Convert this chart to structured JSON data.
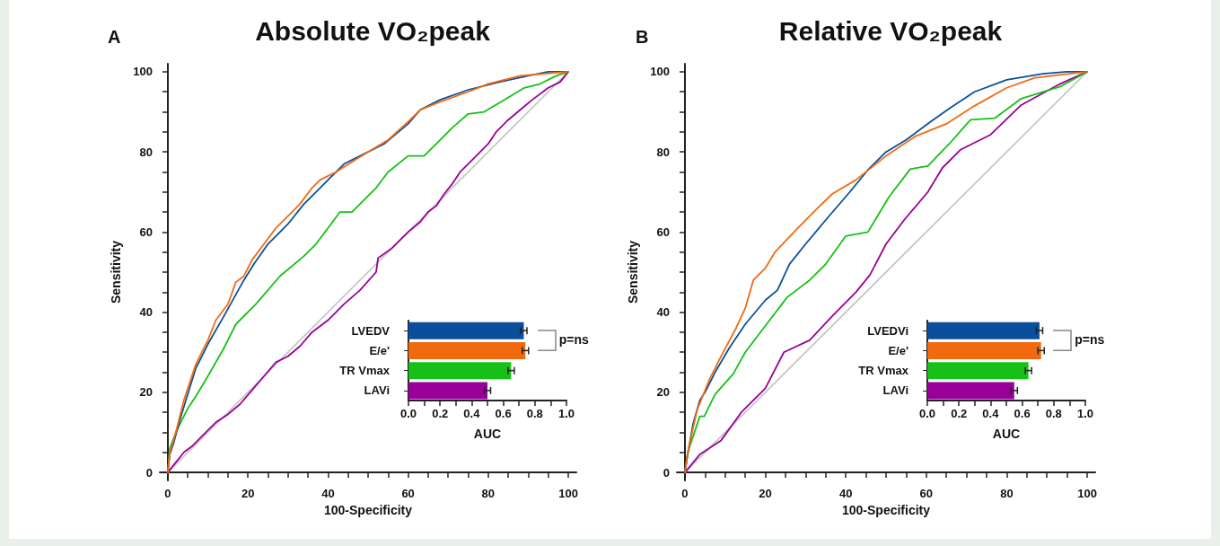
{
  "chart_data": [
    {
      "type": "line",
      "title": "Absolute VO₂peak",
      "annotations": [
        "A"
      ],
      "xlabel": "100-Specificity",
      "ylabel": "Sensitivity",
      "xlim": [
        -2,
        102
      ],
      "ylim": [
        -2,
        102
      ],
      "xticks": [
        0,
        {
          "value": 5,
          "label": null
        },
        {
          "value": 10,
          "label": null
        },
        {
          "value": 15,
          "label": null
        },
        20,
        {
          "value": 25,
          "label": null
        },
        {
          "value": 30,
          "label": null
        },
        {
          "value": 35,
          "label": null
        },
        40,
        {
          "value": 45,
          "label": null
        },
        {
          "value": 50,
          "label": null
        },
        {
          "value": 55,
          "label": null
        },
        60,
        {
          "value": 65,
          "label": null
        },
        {
          "value": 70,
          "label": null
        },
        {
          "value": 75,
          "label": null
        },
        80,
        {
          "value": 85,
          "label": null
        },
        {
          "value": 90,
          "label": null
        },
        {
          "value": 95,
          "label": null
        },
        100
      ],
      "yticks": [
        0,
        {
          "value": 5,
          "label": null
        },
        {
          "value": 10,
          "label": null
        },
        {
          "value": 15,
          "label": null
        },
        20,
        {
          "value": 25,
          "label": null
        },
        {
          "value": 30,
          "label": null
        },
        {
          "value": 35,
          "label": null
        },
        40,
        {
          "value": 45,
          "label": null
        },
        {
          "value": 50,
          "label": null
        },
        {
          "value": 55,
          "label": null
        },
        60,
        {
          "value": 65,
          "label": null
        },
        {
          "value": 70,
          "label": null
        },
        {
          "value": 75,
          "label": null
        },
        80,
        {
          "value": 85,
          "label": null
        },
        {
          "value": 90,
          "label": null
        },
        {
          "value": 95,
          "label": null
        },
        100
      ],
      "line_style": "solid",
      "series": [
        {
          "color": "#c8c8c8",
          "x": [
            0,
            100
          ],
          "values": [
            0,
            100
          ]
        },
        {
          "color": "#990099",
          "x": [
            0,
            2,
            4,
            6,
            8,
            10,
            12,
            15,
            18,
            21,
            24,
            27,
            30,
            33,
            36,
            40,
            44,
            48,
            52,
            52.5,
            56,
            60,
            63,
            65,
            67,
            69,
            71,
            73,
            75,
            77,
            80,
            82,
            85,
            88,
            91,
            95,
            98,
            100
          ],
          "values": [
            0,
            2.5,
            5,
            6.5,
            8.5,
            10.5,
            12.5,
            14.5,
            17,
            20.5,
            24,
            27.5,
            29,
            31.5,
            35,
            38,
            42,
            45.5,
            50,
            53.5,
            56,
            60,
            62.5,
            65,
            66.5,
            69.5,
            72,
            75,
            77,
            79,
            82,
            85,
            88,
            90.5,
            93,
            96,
            97.5,
            100
          ]
        },
        {
          "color": "#17c017",
          "x": [
            0,
            0.5,
            2,
            4,
            5,
            7,
            10,
            14,
            17,
            22,
            28,
            34,
            37,
            40,
            43,
            46,
            49,
            52,
            55,
            60,
            64,
            68,
            71,
            75,
            79,
            84,
            89,
            93,
            97,
            100
          ],
          "values": [
            0,
            6,
            10,
            14,
            16,
            19,
            24,
            31,
            37,
            42,
            49,
            54,
            57,
            61,
            65,
            65,
            68,
            71,
            75,
            79,
            79,
            83,
            86,
            89.5,
            90,
            93,
            96,
            97,
            99,
            100
          ]
        },
        {
          "color": "#0b4f9c",
          "x": [
            0,
            0.5,
            1.5,
            3,
            4.5,
            7,
            10,
            14,
            19,
            21.5,
            25,
            30,
            34,
            37,
            40,
            44,
            49,
            54,
            60,
            63,
            68,
            75,
            83,
            90,
            95,
            100
          ],
          "values": [
            0,
            4.5,
            7.5,
            13,
            18,
            26,
            32,
            39,
            48,
            52,
            57,
            62,
            67,
            70,
            73,
            77,
            79.5,
            82,
            87,
            90.5,
            93,
            95.5,
            97.5,
            99,
            100,
            100
          ]
        },
        {
          "color": "#f26a10",
          "x": [
            0,
            0.5,
            2,
            4,
            7,
            10,
            12,
            15,
            17,
            19,
            21,
            24,
            27,
            30,
            33,
            36,
            38,
            42,
            46,
            50,
            55,
            60,
            63,
            68,
            75,
            80,
            88,
            100
          ],
          "values": [
            0,
            5,
            10,
            18,
            27,
            33,
            38,
            42,
            47.5,
            49,
            53,
            57,
            61,
            64,
            67,
            71,
            73,
            75,
            77.5,
            80,
            83,
            87.5,
            90.5,
            92.5,
            95,
            97,
            99,
            100
          ]
        }
      ]
    },
    {
      "type": "bar",
      "orientation": "horizontal",
      "categories": [
        "LVEDV",
        "E/e'",
        "TR Vmax",
        "LAVi"
      ],
      "values": [
        0.73,
        0.74,
        0.65,
        0.5
      ],
      "errors": [
        0.02,
        0.02,
        0.02,
        0.02
      ],
      "colors": [
        "#0b4f9c",
        "#f26a10",
        "#17c017",
        "#990099"
      ],
      "xlabel": "AUC",
      "xlim": [
        0,
        1
      ],
      "xticks": [
        {
          "value": 0,
          "label": "0.0"
        },
        {
          "value": 0.1,
          "label": null
        },
        0.2,
        {
          "value": 0.3,
          "label": null
        },
        0.4,
        {
          "value": 0.5,
          "label": null
        },
        0.6,
        {
          "value": 0.7,
          "label": null
        },
        0.8,
        {
          "value": 0.9,
          "label": null
        },
        {
          "value": 1,
          "label": "1.0"
        }
      ],
      "annotations": [
        "p=ns"
      ]
    },
    {
      "type": "line",
      "title": "Relative VO₂peak",
      "annotations": [
        "B"
      ],
      "xlabel": "100-Specificity",
      "ylabel": "Sensitivity",
      "xlim": [
        -2,
        102
      ],
      "ylim": [
        -2,
        102
      ],
      "xticks": [
        0,
        {
          "value": 5,
          "label": null
        },
        {
          "value": 10,
          "label": null
        },
        {
          "value": 15,
          "label": null
        },
        20,
        {
          "value": 25,
          "label": null
        },
        {
          "value": 30,
          "label": null
        },
        {
          "value": 35,
          "label": null
        },
        40,
        {
          "value": 45,
          "label": null
        },
        {
          "value": 50,
          "label": null
        },
        {
          "value": 55,
          "label": null
        },
        60,
        {
          "value": 65,
          "label": null
        },
        {
          "value": 70,
          "label": null
        },
        {
          "value": 75,
          "label": null
        },
        80,
        {
          "value": 85,
          "label": null
        },
        {
          "value": 90,
          "label": null
        },
        {
          "value": 95,
          "label": null
        },
        100
      ],
      "yticks": [
        0,
        {
          "value": 5,
          "label": null
        },
        {
          "value": 10,
          "label": null
        },
        {
          "value": 15,
          "label": null
        },
        20,
        {
          "value": 25,
          "label": null
        },
        {
          "value": 30,
          "label": null
        },
        {
          "value": 35,
          "label": null
        },
        40,
        {
          "value": 45,
          "label": null
        },
        {
          "value": 50,
          "label": null
        },
        {
          "value": 55,
          "label": null
        },
        60,
        {
          "value": 65,
          "label": null
        },
        {
          "value": 70,
          "label": null
        },
        {
          "value": 75,
          "label": null
        },
        80,
        {
          "value": 85,
          "label": null
        },
        {
          "value": 90,
          "label": null
        },
        {
          "value": 95,
          "label": null
        },
        100
      ],
      "line_style": "solid",
      "series": [
        {
          "color": "#c8c8c8",
          "x": [
            0,
            100
          ],
          "values": [
            0,
            100
          ]
        },
        {
          "color": "#990099",
          "x": [
            0,
            3.7,
            9,
            14,
            20,
            24.6,
            31,
            36.6,
            42.5,
            46,
            50,
            54.5,
            60.4,
            64,
            68.6,
            76,
            83.6,
            93.3,
            100
          ],
          "values": [
            0,
            4.5,
            8,
            15,
            21,
            30,
            33,
            39,
            45,
            49.3,
            57,
            63,
            70,
            76,
            80.6,
            84.3,
            91.7,
            97,
            100
          ]
        },
        {
          "color": "#17c017",
          "x": [
            0,
            0.7,
            3.7,
            4.8,
            7.5,
            12,
            15,
            20,
            25.4,
            31,
            35,
            40,
            45.5,
            50.7,
            56,
            60.4,
            65.7,
            71,
            77,
            83.6,
            93.3,
            100
          ],
          "values": [
            0,
            5,
            14,
            14,
            19.5,
            24.6,
            30,
            36.6,
            43.7,
            48,
            52,
            59,
            60,
            68.7,
            75.7,
            76.5,
            82,
            88,
            88.4,
            93.3,
            96.3,
            100
          ]
        },
        {
          "color": "#0b4f9c",
          "x": [
            0,
            0.7,
            2,
            3.7,
            5,
            7.5,
            11,
            15,
            20,
            23,
            26,
            30,
            35,
            41,
            45.5,
            50,
            55,
            61,
            66,
            72,
            80,
            89,
            95,
            100
          ],
          "values": [
            0,
            4.5,
            12,
            18,
            20,
            25,
            31,
            37,
            43,
            45.5,
            52,
            57,
            63,
            70,
            75.5,
            80,
            83,
            87.5,
            91,
            95,
            98,
            99.5,
            100,
            100
          ]
        },
        {
          "color": "#f26a10",
          "x": [
            0,
            0.7,
            3,
            6,
            9,
            12.7,
            15,
            17,
            20,
            22.4,
            27.6,
            32,
            36.6,
            42.5,
            50,
            57.5,
            65,
            72,
            80,
            87,
            100
          ],
          "values": [
            0,
            5,
            15.5,
            23,
            29,
            36,
            41,
            48,
            51,
            55,
            60.5,
            65,
            69.5,
            73,
            79,
            84,
            87,
            91.5,
            96,
            98.5,
            100
          ]
        }
      ]
    },
    {
      "type": "bar",
      "orientation": "horizontal",
      "categories": [
        "LVEDVi",
        "E/e'",
        "TR Vmax",
        "LAVi"
      ],
      "values": [
        0.71,
        0.72,
        0.64,
        0.55
      ],
      "errors": [
        0.02,
        0.02,
        0.02,
        0.02
      ],
      "colors": [
        "#0b4f9c",
        "#f26a10",
        "#17c017",
        "#990099"
      ],
      "xlabel": "AUC",
      "xlim": [
        0,
        1
      ],
      "xticks": [
        {
          "value": 0,
          "label": "0.0"
        },
        {
          "value": 0.1,
          "label": null
        },
        0.2,
        {
          "value": 0.3,
          "label": null
        },
        0.4,
        {
          "value": 0.5,
          "label": null
        },
        0.6,
        {
          "value": 0.7,
          "label": null
        },
        0.8,
        {
          "value": 0.9,
          "label": null
        },
        {
          "value": 1,
          "label": "1.0"
        }
      ],
      "annotations": [
        "p=ns"
      ]
    }
  ]
}
